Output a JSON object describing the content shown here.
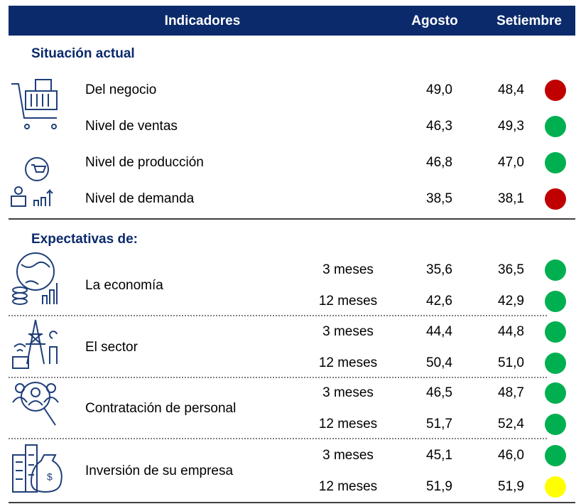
{
  "header": {
    "columns": [
      "Indicadores",
      "Agosto",
      "Setiembre"
    ]
  },
  "sections": [
    {
      "title": "Situación actual",
      "rows": [
        {
          "label": "Del negocio",
          "agosto": "49,0",
          "setiembre": "48,4",
          "color": "#c00000"
        },
        {
          "label": "Nivel de ventas",
          "agosto": "46,3",
          "setiembre": "49,3",
          "color": "#00b050"
        },
        {
          "label": "Nivel de producción",
          "agosto": "46,8",
          "setiembre": "47,0",
          "color": "#00b050"
        },
        {
          "label": "Nivel de demanda",
          "agosto": "38,5",
          "setiembre": "38,1",
          "color": "#c00000"
        }
      ]
    },
    {
      "title": "Expectativas de:",
      "groups": [
        {
          "label": "La economía",
          "rows": [
            {
              "horizon": "3 meses",
              "agosto": "35,6",
              "setiembre": "36,5",
              "color": "#00b050"
            },
            {
              "horizon": "12 meses",
              "agosto": "42,6",
              "setiembre": "42,9",
              "color": "#00b050"
            }
          ]
        },
        {
          "label": "El sector",
          "rows": [
            {
              "horizon": "3 meses",
              "agosto": "44,4",
              "setiembre": "44,8",
              "color": "#00b050"
            },
            {
              "horizon": "12 meses",
              "agosto": "50,4",
              "setiembre": "51,0",
              "color": "#00b050"
            }
          ]
        },
        {
          "label": "Contratación de personal",
          "rows": [
            {
              "horizon": "3 meses",
              "agosto": "46,5",
              "setiembre": "48,7",
              "color": "#00b050"
            },
            {
              "horizon": "12 meses",
              "agosto": "51,7",
              "setiembre": "52,4",
              "color": "#00b050"
            }
          ]
        },
        {
          "label": "Inversión de su empresa",
          "rows": [
            {
              "horizon": "3 meses",
              "agosto": "45,1",
              "setiembre": "46,0",
              "color": "#00b050"
            },
            {
              "horizon": "12 meses",
              "agosto": "51,9",
              "setiembre": "51,9",
              "color": "#ffff00"
            }
          ]
        }
      ]
    }
  ]
}
